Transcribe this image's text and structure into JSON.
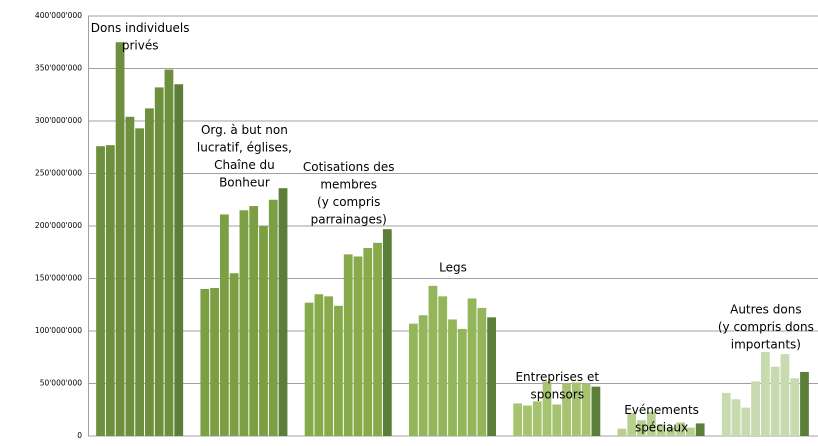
{
  "chart_data": {
    "type": "bar",
    "ylim": [
      0,
      400000000
    ],
    "yticks": [
      0,
      {
        "value": 50000000,
        "label": "50'000'000"
      },
      {
        "value": 100000000,
        "label": "100'000'000"
      },
      {
        "value": 150000000,
        "label": "150'000'000"
      },
      {
        "value": 200000000,
        "label": "200'000'000"
      },
      {
        "value": 250000000,
        "label": "250'000'000"
      },
      {
        "value": 300000000,
        "label": "300'000'000"
      },
      {
        "value": 350000000,
        "label": "350'000'000"
      },
      {
        "value": 400000000,
        "label": "400'000'000"
      }
    ],
    "grid": true,
    "last_color": "#5b7f38",
    "groups": [
      {
        "label": [
          "Dons individuels",
          "privés"
        ],
        "color": "#6e8f3d",
        "values": [
          276000000,
          277000000,
          375000000,
          304000000,
          293000000,
          312000000,
          332000000,
          349000000,
          335000000
        ]
      },
      {
        "label": [
          "Org. à but non",
          "lucratif, églises,",
          "Chaîne du",
          "Bonheur"
        ],
        "color": "#7b9f42",
        "values": [
          140000000,
          141000000,
          211000000,
          155000000,
          215000000,
          219000000,
          200000000,
          225000000,
          236000000
        ]
      },
      {
        "label": [
          "Cotisations des",
          "membres",
          "(y compris",
          "parrainages)"
        ],
        "color": "#87ab4b",
        "values": [
          127000000,
          135000000,
          133000000,
          124000000,
          173000000,
          171000000,
          179000000,
          184000000,
          197000000
        ]
      },
      {
        "label": [
          "Legs"
        ],
        "color": "#93b65a",
        "values": [
          107000000,
          115000000,
          143000000,
          133000000,
          111000000,
          102000000,
          131000000,
          122000000,
          113000000
        ]
      },
      {
        "label": [
          "Entreprises et",
          "sponsors"
        ],
        "color": "#a6c470",
        "values": [
          31000000,
          29000000,
          33000000,
          52000000,
          30000000,
          50000000,
          51000000,
          50000000,
          47000000
        ]
      },
      {
        "label": [
          "Evénements",
          "spéciaux"
        ],
        "color": "#b8d08f",
        "values": [
          7000000,
          22000000,
          15000000,
          23000000,
          11000000,
          8000000,
          13000000,
          8000000,
          12000000
        ]
      },
      {
        "label": [
          "Autres dons",
          "(y compris dons",
          "importants)"
        ],
        "color": "#c8dab0",
        "values": [
          41000000,
          35000000,
          27000000,
          52000000,
          80000000,
          66000000,
          78000000,
          55000000,
          61000000
        ]
      }
    ]
  }
}
